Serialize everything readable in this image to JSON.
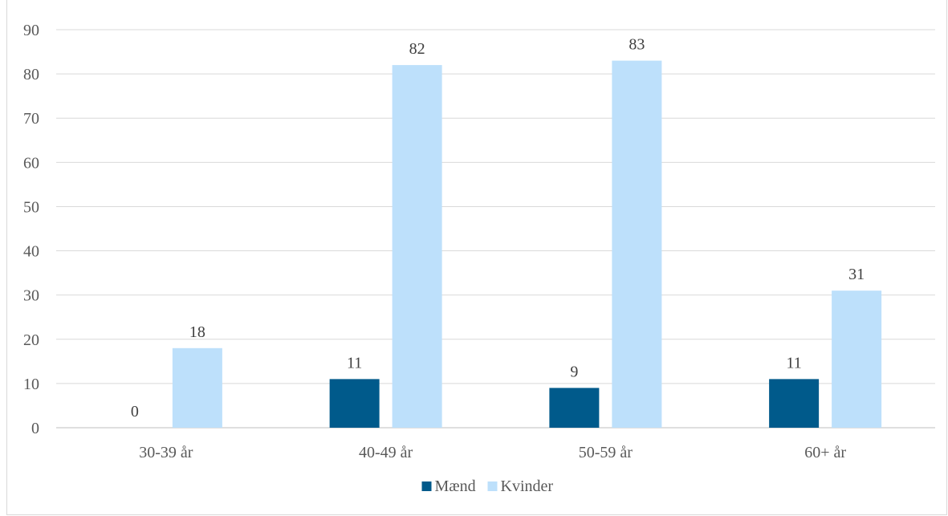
{
  "chart_data": {
    "type": "bar",
    "categories": [
      "30-39 år",
      "40-49 år",
      "50-59 år",
      "60+ år"
    ],
    "series": [
      {
        "name": "Mænd",
        "values": [
          0,
          11,
          9,
          11
        ],
        "color": "#005a8b"
      },
      {
        "name": "Kvinder",
        "values": [
          18,
          82,
          83,
          31
        ],
        "color": "#bde0fb"
      }
    ],
    "ylim": [
      0,
      90
    ],
    "yticks": [
      0,
      10,
      20,
      30,
      40,
      50,
      60,
      70,
      80,
      90
    ],
    "grid": true,
    "legend": "bottom-center",
    "data_labels": true
  }
}
